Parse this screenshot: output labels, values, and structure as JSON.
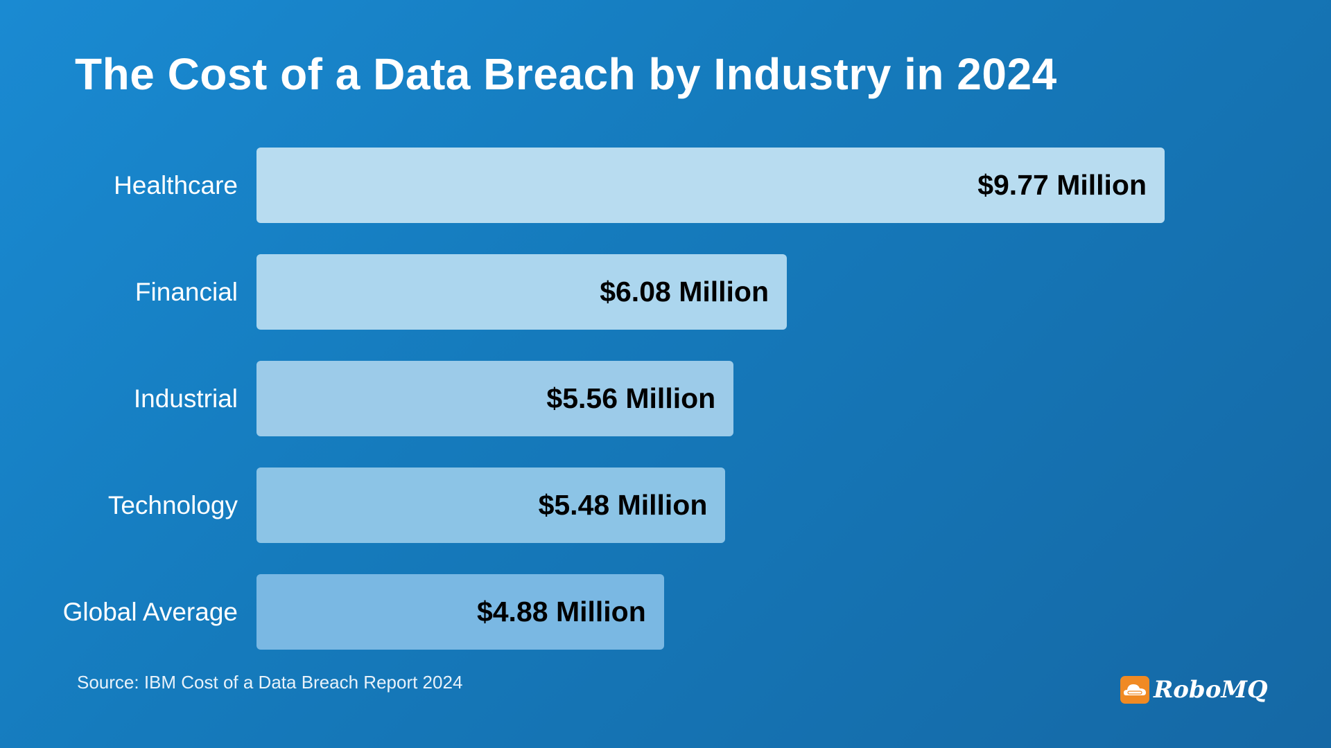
{
  "chart_data": {
    "type": "bar",
    "orientation": "horizontal",
    "title": "The Cost of a Data Breach by Industry in 2024",
    "categories": [
      "Healthcare",
      "Financial",
      "Industrial",
      "Technology",
      "Global Average"
    ],
    "values": [
      9.77,
      6.08,
      5.56,
      5.48,
      4.88
    ],
    "value_labels": [
      "$9.77 Million",
      "$6.08 Million",
      "$5.56 Million",
      "$5.48 Million",
      "$4.88 Million"
    ],
    "unit": "Million USD",
    "bar_colors": [
      "#b8dcf0",
      "#acd6ee",
      "#9ccbe9",
      "#8cc4e6",
      "#7ab8e3"
    ],
    "grid": false,
    "source": "Source: IBM Cost of a Data Breach Report 2024"
  },
  "brand": {
    "name": "RoboMQ",
    "logo_color": "#f08a24"
  },
  "colors": {
    "background_start": "#1a8ad2",
    "background_end": "#1568a5"
  }
}
